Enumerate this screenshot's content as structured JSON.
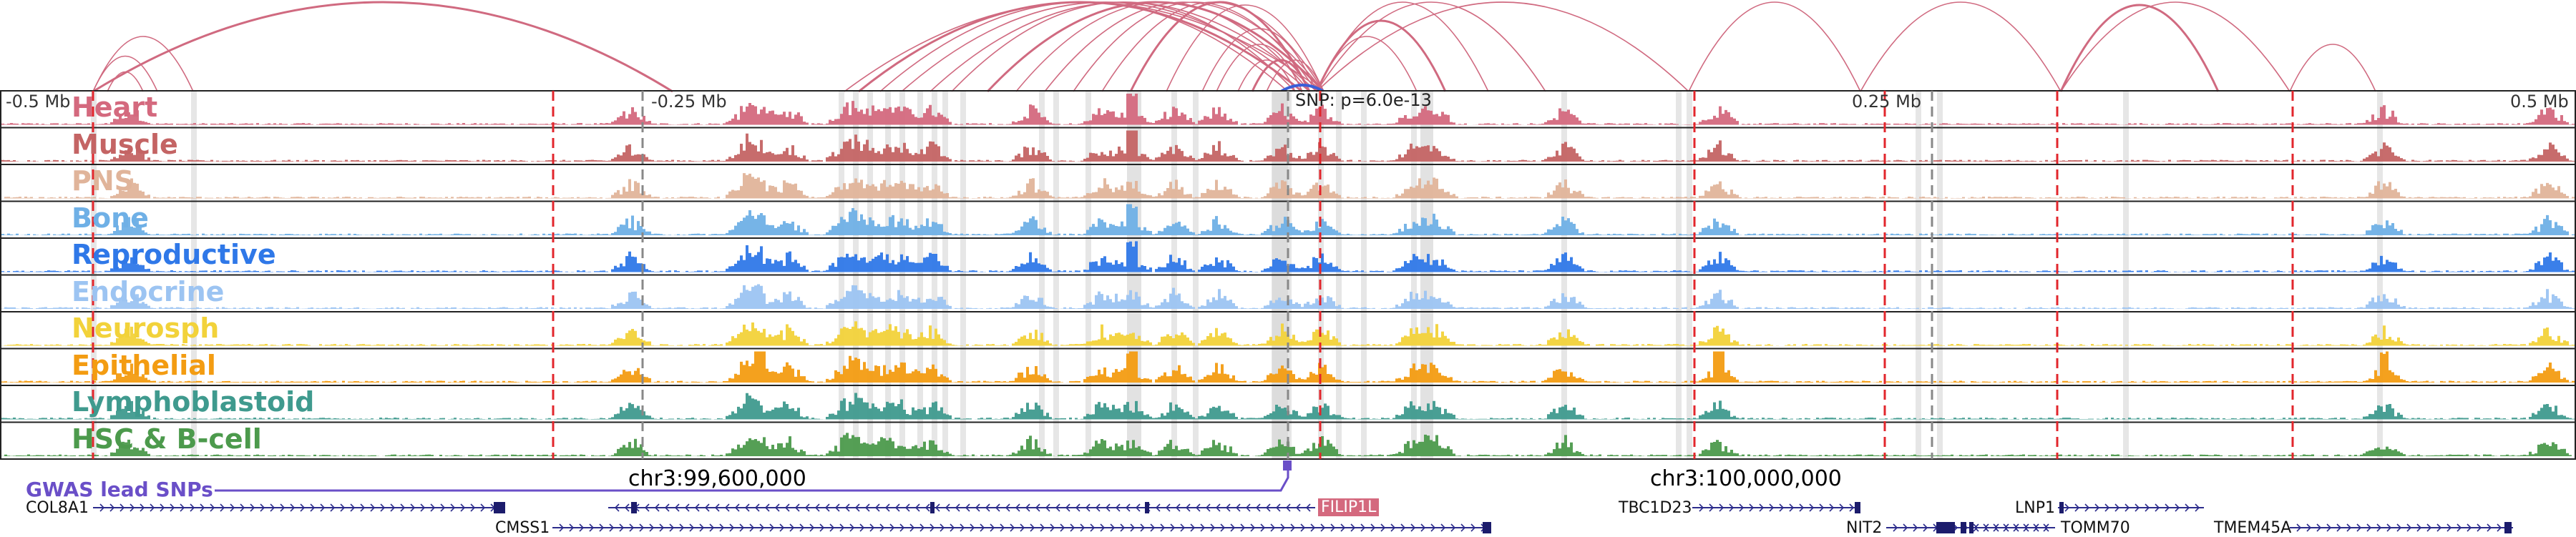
{
  "ruler": {
    "ticks": [
      "-0.5 Mb",
      "-0.25 Mb",
      "0.25 Mb",
      "0.5 Mb"
    ]
  },
  "snp": {
    "label": "SNP: p=6.0e-13"
  },
  "coordinates": [
    "chr3:99,600,000",
    "chr3:100,000,000"
  ],
  "gwas": {
    "label": "GWAS lead SNPs",
    "color": "#6a4fc8"
  },
  "tracks": [
    {
      "name": "Heart",
      "color": "#d4697e"
    },
    {
      "name": "Muscle",
      "color": "#c46464"
    },
    {
      "name": "PNS",
      "color": "#e0b49a"
    },
    {
      "name": "Bone",
      "color": "#6fb0e6"
    },
    {
      "name": "Reproductive",
      "color": "#2f78e8"
    },
    {
      "name": "Endocrine",
      "color": "#9cc4f2"
    },
    {
      "name": "Neurosph",
      "color": "#f2d23a"
    },
    {
      "name": "Epithelial",
      "color": "#f39c12"
    },
    {
      "name": "Lymphoblastoid",
      "color": "#3f9a8e"
    },
    {
      "name": "HSC & B-cell",
      "color": "#4c9a4c"
    }
  ],
  "genes": [
    {
      "name": "COL8A1",
      "strand": "+",
      "highlight": false
    },
    {
      "name": "CMSS1",
      "strand": "+",
      "highlight": false
    },
    {
      "name": "FILIP1L",
      "strand": "-",
      "highlight": true,
      "color": "#d4697e"
    },
    {
      "name": "TBC1D23",
      "strand": "+",
      "highlight": false
    },
    {
      "name": "NIT2",
      "strand": "+",
      "highlight": false
    },
    {
      "name": "TOMM70",
      "strand": "-",
      "highlight": false
    },
    {
      "name": "LNP1",
      "strand": "+",
      "highlight": false
    },
    {
      "name": "TMEM45A",
      "strand": "+",
      "highlight": false
    }
  ]
}
